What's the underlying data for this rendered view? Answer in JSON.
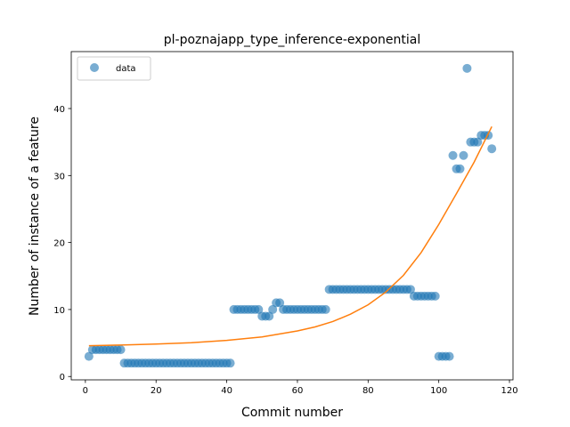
{
  "chart_data": {
    "type": "scatter",
    "title": "pl-poznajapp_type_inference-exponential",
    "xlabel": "Commit number",
    "ylabel": "Number of instance of a feature",
    "xlim": [
      -4,
      121
    ],
    "ylim": [
      -0.5,
      48.5
    ],
    "xticks": [
      0,
      20,
      40,
      60,
      80,
      100,
      120
    ],
    "yticks": [
      0,
      10,
      20,
      30,
      40
    ],
    "legend_position": "top-left",
    "series": [
      {
        "name": "data",
        "type": "scatter",
        "color": "#1f77b4",
        "x": [
          1,
          2,
          3,
          4,
          5,
          6,
          7,
          8,
          9,
          10,
          11,
          12,
          13,
          14,
          15,
          16,
          17,
          18,
          19,
          20,
          21,
          22,
          23,
          24,
          25,
          26,
          27,
          28,
          29,
          30,
          31,
          32,
          33,
          34,
          35,
          36,
          37,
          38,
          39,
          40,
          41,
          42,
          43,
          44,
          45,
          46,
          47,
          48,
          49,
          50,
          51,
          52,
          53,
          54,
          55,
          56,
          57,
          58,
          59,
          60,
          61,
          62,
          63,
          64,
          65,
          66,
          67,
          68,
          69,
          70,
          71,
          72,
          73,
          74,
          75,
          76,
          77,
          78,
          79,
          80,
          81,
          82,
          83,
          84,
          85,
          86,
          87,
          88,
          89,
          90,
          91,
          92,
          93,
          94,
          95,
          96,
          97,
          98,
          99,
          100,
          101,
          102,
          103,
          104,
          105,
          106,
          107,
          108,
          109,
          110,
          111,
          112,
          113,
          114,
          115
        ],
        "y": [
          3,
          4,
          4,
          4,
          4,
          4,
          4,
          4,
          4,
          4,
          2,
          2,
          2,
          2,
          2,
          2,
          2,
          2,
          2,
          2,
          2,
          2,
          2,
          2,
          2,
          2,
          2,
          2,
          2,
          2,
          2,
          2,
          2,
          2,
          2,
          2,
          2,
          2,
          2,
          2,
          2,
          10,
          10,
          10,
          10,
          10,
          10,
          10,
          10,
          9,
          9,
          9,
          10,
          11,
          11,
          10,
          10,
          10,
          10,
          10,
          10,
          10,
          10,
          10,
          10,
          10,
          10,
          10,
          13,
          13,
          13,
          13,
          13,
          13,
          13,
          13,
          13,
          13,
          13,
          13,
          13,
          13,
          13,
          13,
          13,
          13,
          13,
          13,
          13,
          13,
          13,
          13,
          12,
          12,
          12,
          12,
          12,
          12,
          12,
          3,
          3,
          3,
          3,
          33,
          31,
          31,
          33,
          46,
          35,
          35,
          35,
          36,
          36,
          36,
          34
        ]
      },
      {
        "name": "",
        "type": "line",
        "color": "#ff7f0e",
        "x": [
          1,
          10,
          20,
          30,
          40,
          50,
          60,
          65,
          70,
          75,
          80,
          85,
          90,
          95,
          100,
          105,
          110,
          115
        ],
        "y": [
          4.6,
          4.7,
          4.85,
          5.05,
          5.4,
          5.9,
          6.8,
          7.4,
          8.2,
          9.3,
          10.7,
          12.6,
          15.1,
          18.5,
          22.7,
          27.3,
          32.0,
          37.3
        ]
      }
    ]
  }
}
